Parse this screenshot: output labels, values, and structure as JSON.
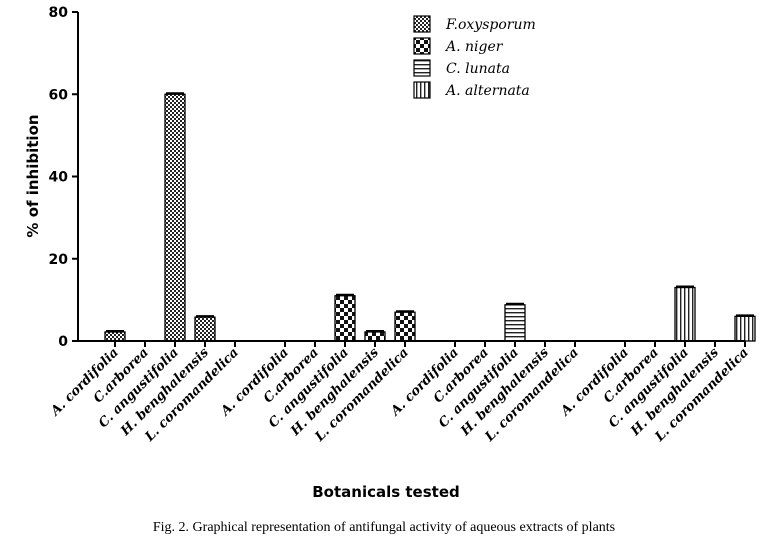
{
  "chart_data": {
    "type": "bar",
    "title": "",
    "xlabel": "Botanicals tested",
    "ylabel": "% of inhibition",
    "ylim": [
      0,
      80
    ],
    "yticks": [
      0,
      20,
      40,
      60,
      80
    ],
    "grid": false,
    "legend_position": "top-right",
    "groups": [
      {
        "name": "F.oxysporum",
        "pattern": "crosshatch-fine",
        "categories": [
          "A. cordifolia",
          "C.arborea",
          "C. angustifolia",
          "H. benghalensis",
          "L. coromandelica"
        ],
        "values": [
          2.2,
          0,
          60,
          5.8,
          0
        ]
      },
      {
        "name": "A. niger",
        "pattern": "checker",
        "categories": [
          "A. cordifolia",
          "C.arborea",
          "C. angustifolia",
          "H. benghalensis",
          "L. coromandelica"
        ],
        "values": [
          0,
          0,
          11,
          2.2,
          7
        ]
      },
      {
        "name": "C. lunata",
        "pattern": "horizontal-lines",
        "categories": [
          "A. cordifolia",
          "C.arborea",
          "C. angustifolia",
          "H. benghalensis",
          "L. coromandelica"
        ],
        "values": [
          0,
          0,
          8.8,
          0,
          0
        ]
      },
      {
        "name": "A. alternata",
        "pattern": "vertical-lines",
        "categories": [
          "A. cordifolia",
          "C.arborea",
          "C. angustifolia",
          "H. benghalensis",
          "L. coromandelica"
        ],
        "values": [
          0,
          0,
          13,
          0,
          6
        ]
      }
    ]
  },
  "caption": "Fig. 2. Graphical representation of antifungal activity of aqueous extracts of plants"
}
